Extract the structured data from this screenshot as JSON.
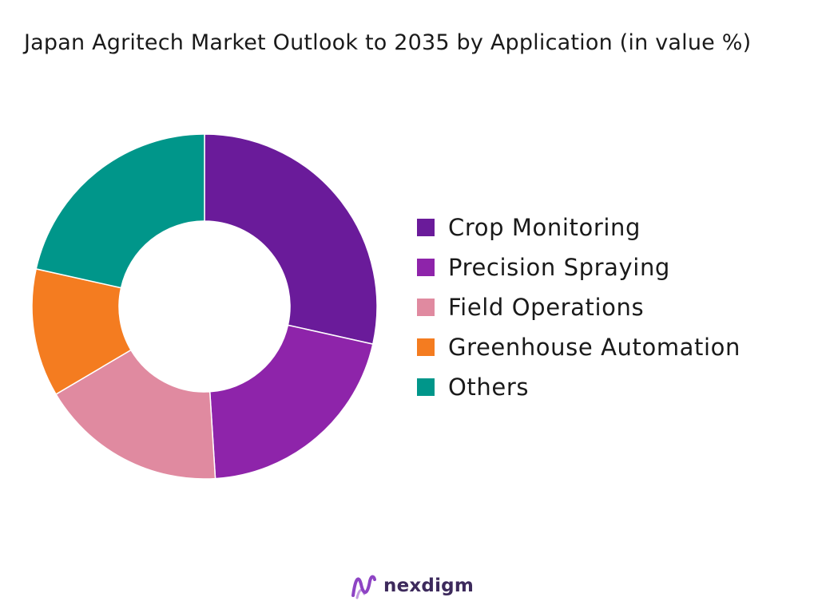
{
  "chart_data": {
    "type": "pie",
    "title": "Japan Agritech Market Outlook to 2035 by Application (in value %)",
    "donut": true,
    "categories": [
      "Crop Monitoring",
      "Precision Spraying",
      "Field Operations",
      "Greenhouse Automation",
      "Others"
    ],
    "values": [
      28.5,
      20.5,
      17.5,
      12,
      21.5
    ],
    "colors": [
      "#6a1b9a",
      "#8e24aa",
      "#e08aa0",
      "#f47c20",
      "#00968a"
    ],
    "legend_position": "right"
  },
  "brand": {
    "name": "nexdigm",
    "logo_color": "#8e44c4"
  }
}
